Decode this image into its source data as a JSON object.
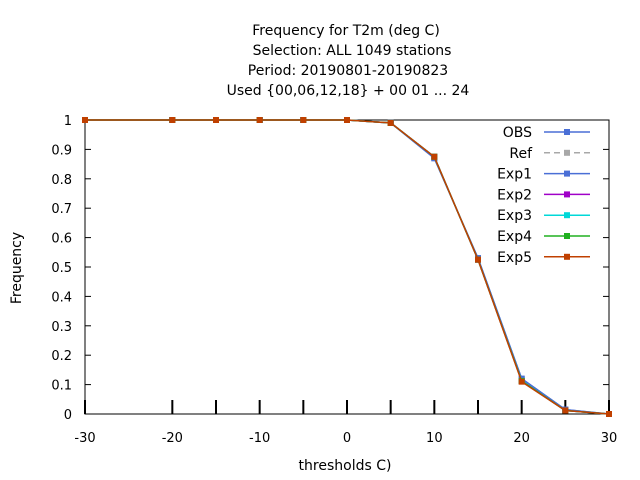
{
  "chart_data": {
    "type": "line",
    "title_lines": [
      "Frequency  for T2m (deg C)",
      "Selection: ALL    1049 stations",
      "Period: 20190801-20190823",
      "Used {00,06,12,18} + 00 01 ... 24"
    ],
    "xlabel": "thresholds C)",
    "ylabel": "Frequency",
    "xlim": [
      -30,
      30
    ],
    "ylim": [
      0,
      1
    ],
    "xticks": [
      -30,
      -20,
      -10,
      0,
      10,
      20,
      30
    ],
    "yticks": [
      0,
      0.1,
      0.2,
      0.3,
      0.4,
      0.5,
      0.6,
      0.7,
      0.8,
      0.9,
      1
    ],
    "x": [
      -30,
      -20,
      -15,
      -10,
      -5,
      0,
      5,
      10,
      15,
      20,
      25,
      30
    ],
    "legend_position": "top-right",
    "series": [
      {
        "name": "OBS",
        "color": "#4a6fd6",
        "dashed": false,
        "values": [
          1,
          1,
          1,
          1,
          1,
          1,
          0.99,
          0.87,
          0.53,
          0.12,
          0.015,
          0
        ]
      },
      {
        "name": "Ref",
        "color": "#a8a8a8",
        "dashed": true,
        "values": [
          1,
          1,
          1,
          1,
          1,
          1,
          0.99,
          0.875,
          0.525,
          0.115,
          0.013,
          0
        ]
      },
      {
        "name": "Exp1",
        "color": "#4a6fd6",
        "dashed": false,
        "values": [
          1,
          1,
          1,
          1,
          1,
          1,
          0.99,
          0.87,
          0.53,
          0.12,
          0.015,
          0
        ]
      },
      {
        "name": "Exp2",
        "color": "#a000c8",
        "dashed": false,
        "values": [
          1,
          1,
          1,
          1,
          1,
          1,
          0.99,
          0.875,
          0.525,
          0.113,
          0.012,
          0
        ]
      },
      {
        "name": "Exp3",
        "color": "#00d8d8",
        "dashed": false,
        "values": [
          1,
          1,
          1,
          1,
          1,
          1,
          0.99,
          0.875,
          0.525,
          0.113,
          0.012,
          0
        ]
      },
      {
        "name": "Exp4",
        "color": "#20b020",
        "dashed": false,
        "values": [
          1,
          1,
          1,
          1,
          1,
          1,
          0.99,
          0.875,
          0.525,
          0.112,
          0.012,
          0
        ]
      },
      {
        "name": "Exp5",
        "color": "#c04000",
        "dashed": false,
        "values": [
          1,
          1,
          1,
          1,
          1,
          1,
          0.99,
          0.875,
          0.525,
          0.11,
          0.012,
          0
        ]
      }
    ]
  }
}
